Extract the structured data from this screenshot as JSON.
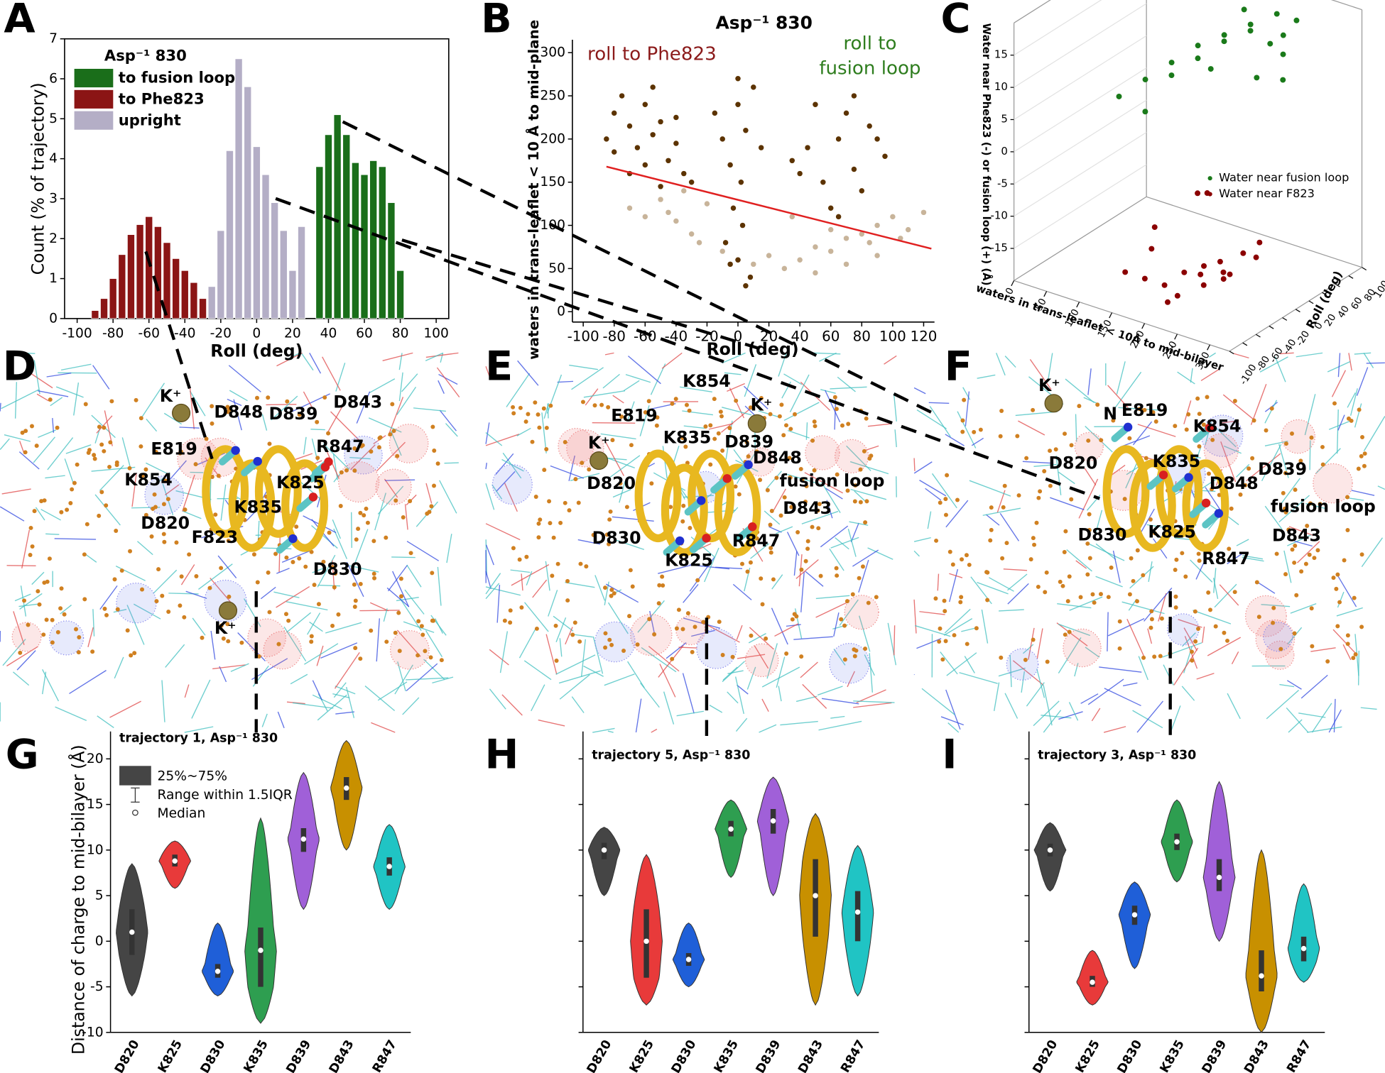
{
  "chart_data": [
    {
      "type": "bar",
      "panel_label": "A",
      "title": "Asp⁻¹ 830",
      "xlabel": "Roll (deg)",
      "ylabel": "Count (% of trajectory)",
      "xlim": [
        -107,
        107
      ],
      "xticks": [
        -100,
        -80,
        -60,
        -40,
        -20,
        0,
        20,
        40,
        60,
        80,
        100
      ],
      "ylim": [
        0,
        7
      ],
      "yticks": [
        0,
        1,
        2,
        3,
        4,
        5,
        6,
        7
      ],
      "series": [
        {
          "name": "to fusion loop",
          "color": "#1a6e1a",
          "x": [
            35,
            40,
            45,
            50,
            55,
            60,
            65,
            70,
            75,
            80
          ],
          "values": [
            3.8,
            4.6,
            5.1,
            4.6,
            3.9,
            3.6,
            3.95,
            3.8,
            2.9,
            1.2
          ]
        },
        {
          "name": "to Phe823",
          "color": "#8b1515",
          "x": [
            -90,
            -85,
            -80,
            -75,
            -70,
            -65,
            -60,
            -55,
            -50,
            -45,
            -40,
            -35,
            -30
          ],
          "values": [
            0.2,
            0.5,
            1.0,
            1.6,
            2.1,
            2.35,
            2.55,
            2.3,
            1.9,
            1.5,
            1.2,
            0.9,
            0.5
          ]
        },
        {
          "name": "upright",
          "color": "#b4aec6",
          "x": [
            -25,
            -20,
            -15,
            -10,
            -5,
            0,
            5,
            10,
            15,
            20,
            25
          ],
          "values": [
            0.8,
            2.2,
            4.2,
            6.5,
            5.8,
            4.3,
            3.6,
            2.9,
            2.2,
            1.2,
            2.3
          ]
        }
      ]
    },
    {
      "type": "scatter",
      "panel_label": "B",
      "title": "Asp⁻¹ 830",
      "xlabel": "Roll (deg)",
      "ylabel": "waters in trans-leaflet < 10 Å to mid-plane",
      "xlim": [
        -107,
        127
      ],
      "xticks": [
        -100,
        -80,
        -60,
        -40,
        -20,
        0,
        20,
        40,
        60,
        80,
        100,
        120
      ],
      "ylim": [
        -12,
        315
      ],
      "yticks": [
        0,
        50,
        100,
        150,
        200,
        250,
        300
      ],
      "annotations": [
        {
          "text": "roll to Phe823",
          "color": "#8b1a1a"
        },
        {
          "text": "roll to",
          "color": "#2e7d1e"
        },
        {
          "text": "fusion loop",
          "color": "#2e7d1e"
        }
      ],
      "trend_line": {
        "color": "#e02020",
        "x": [
          -85,
          125
        ],
        "y": [
          168,
          73
        ]
      },
      "series": [
        {
          "color": "#c8b49a",
          "x": [
            -70,
            -60,
            -50,
            -40,
            -30,
            -20,
            -25,
            -45,
            -10,
            0,
            10,
            20,
            30,
            40,
            50,
            60,
            70,
            80,
            90,
            100,
            110,
            120,
            50,
            70,
            90,
            35,
            60,
            85,
            105,
            -35
          ],
          "y": [
            120,
            110,
            130,
            105,
            90,
            125,
            80,
            115,
            70,
            60,
            55,
            65,
            50,
            60,
            75,
            70,
            85,
            90,
            100,
            110,
            95,
            115,
            45,
            55,
            65,
            110,
            95,
            80,
            85,
            140
          ]
        },
        {
          "color": "#5c3300",
          "x": [
            -85,
            -80,
            -75,
            -70,
            -65,
            -60,
            -55,
            -50,
            -45,
            -40,
            -35,
            -30,
            -60,
            -70,
            -50,
            -40,
            -80,
            -55,
            -15,
            -10,
            -5,
            0,
            5,
            10,
            15,
            -8,
            0,
            8,
            3,
            -3,
            5,
            -5,
            0,
            2,
            35,
            45,
            55,
            65,
            75,
            85,
            95,
            50,
            70,
            80,
            60,
            40,
            90,
            75,
            65
          ],
          "y": [
            200,
            230,
            250,
            215,
            190,
            240,
            205,
            220,
            175,
            195,
            160,
            150,
            170,
            160,
            145,
            225,
            185,
            260,
            230,
            200,
            170,
            240,
            210,
            260,
            190,
            80,
            60,
            40,
            100,
            120,
            30,
            55,
            270,
            150,
            175,
            190,
            150,
            200,
            165,
            215,
            180,
            240,
            230,
            140,
            120,
            160,
            200,
            250,
            110
          ]
        }
      ]
    },
    {
      "type": "scatter3d",
      "panel_label": "C",
      "xlabel": "waters in trans-leaflet < 10Å to mid-bilayer",
      "ylabel": "Roll (deg)",
      "zlabel": "Water near Phe823 (-) or fusion loop (+) (Å)",
      "xlim": [
        0,
        330
      ],
      "xticks": [
        0,
        50,
        100,
        150,
        200,
        250,
        300
      ],
      "ylim": [
        -100,
        100
      ],
      "yticks": [
        -100,
        -80,
        -60,
        -40,
        -20,
        0,
        20,
        40,
        60,
        80,
        100
      ],
      "zlim": [
        -20,
        20
      ],
      "zticks": [
        -15,
        -10,
        -5,
        0,
        5,
        10,
        15
      ],
      "legend": "right",
      "series": [
        {
          "name": "Water near fusion loop",
          "color": "#1a7a1a",
          "x": [
            100,
            120,
            140,
            160,
            180,
            200,
            220,
            240,
            260,
            280,
            150,
            170,
            190,
            210,
            230,
            250,
            130,
            200,
            240,
            180
          ],
          "y": [
            -40,
            -20,
            0,
            20,
            40,
            60,
            80,
            70,
            50,
            30,
            -10,
            10,
            30,
            50,
            60,
            20,
            -30,
            0,
            90,
            70
          ],
          "z": [
            8,
            10,
            12,
            14,
            15,
            16,
            17,
            15,
            14,
            12,
            11,
            13,
            15,
            16,
            14,
            12,
            6,
            13,
            16,
            17
          ]
        },
        {
          "name": "Water near F823",
          "color": "#8b0000",
          "x": [
            150,
            170,
            190,
            210,
            230,
            250,
            270,
            290,
            310,
            200,
            220,
            240,
            260,
            180,
            280,
            230,
            210,
            250,
            160,
            300
          ],
          "y": [
            -80,
            -70,
            -60,
            -50,
            -40,
            -30,
            -50,
            -60,
            -40,
            -20,
            -70,
            -55,
            -45,
            -65,
            -30,
            -35,
            -75,
            -60,
            -50,
            -25
          ],
          "z": [
            -15,
            -16,
            -17,
            -15,
            -14,
            -16,
            -13,
            -12,
            -10,
            -5,
            -17,
            -14,
            -12,
            -8,
            -11,
            -3,
            -18,
            -15,
            -13,
            -9
          ]
        }
      ]
    },
    {
      "type": "violin",
      "panel_label": "G",
      "title": "trajectory 1, Asp⁻¹ 830",
      "ylabel": "Distance of charge to mid-bilayer (Å)",
      "legend": [
        "25%~75%",
        "Range within 1.5IQR",
        "Median"
      ],
      "ylim": [
        -10,
        23
      ],
      "yticks": [
        -10,
        -5,
        0,
        5,
        10,
        15,
        20
      ],
      "show_tick_labels": true,
      "categories": [
        "D820",
        "K825",
        "D830",
        "K835",
        "D839",
        "D843",
        "R847"
      ],
      "violins": [
        {
          "color": "#454545",
          "min": -6,
          "q1": -1.5,
          "median": 1,
          "q3": 3.5,
          "max": 8.5
        },
        {
          "color": "#e83a3a",
          "min": 5.8,
          "q1": 8.2,
          "median": 8.8,
          "q3": 9.5,
          "max": 11
        },
        {
          "color": "#1f5fd8",
          "min": -6,
          "q1": -4,
          "median": -3.3,
          "q3": -2.5,
          "max": 2
        },
        {
          "color": "#2e9e50",
          "min": -9,
          "q1": -5,
          "median": -1,
          "q3": 1.5,
          "max": 13.5
        },
        {
          "color": "#a060d8",
          "min": 3.5,
          "q1": 9.8,
          "median": 11.2,
          "q3": 12.4,
          "max": 18.5
        },
        {
          "color": "#c89000",
          "min": 10,
          "q1": 15.5,
          "median": 16.8,
          "q3": 18,
          "max": 22
        },
        {
          "color": "#20c4c4",
          "min": 3.5,
          "q1": 7.2,
          "median": 8.2,
          "q3": 9.2,
          "max": 12.8
        }
      ]
    },
    {
      "type": "violin",
      "panel_label": "H",
      "title": "trajectory 5, Asp⁻¹ 830",
      "ylim": [
        -10,
        23
      ],
      "yticks": [
        -10,
        -5,
        0,
        5,
        10,
        15,
        20
      ],
      "show_tick_labels": false,
      "categories": [
        "D820",
        "K825",
        "D830",
        "K835",
        "D839",
        "D843",
        "R847"
      ],
      "violins": [
        {
          "color": "#454545",
          "min": 5,
          "q1": 9,
          "median": 10,
          "q3": 10.8,
          "max": 12.5
        },
        {
          "color": "#e83a3a",
          "min": -7,
          "q1": -4,
          "median": 0,
          "q3": 3.5,
          "max": 9.5
        },
        {
          "color": "#1f5fd8",
          "min": -5,
          "q1": -2.7,
          "median": -2,
          "q3": -1.3,
          "max": 2
        },
        {
          "color": "#2e9e50",
          "min": 7,
          "q1": 11.5,
          "median": 12.3,
          "q3": 13.2,
          "max": 15.5
        },
        {
          "color": "#a060d8",
          "min": 5,
          "q1": 11.8,
          "median": 13.2,
          "q3": 14.5,
          "max": 18
        },
        {
          "color": "#c89000",
          "min": -7,
          "q1": 0.5,
          "median": 5,
          "q3": 9,
          "max": 14
        },
        {
          "color": "#20c4c4",
          "min": -6,
          "q1": 0,
          "median": 3.2,
          "q3": 5.5,
          "max": 10.5
        }
      ]
    },
    {
      "type": "violin",
      "panel_label": "I",
      "title": "trajectory 3, Asp⁻¹ 830",
      "ylim": [
        -10,
        23
      ],
      "yticks": [
        -10,
        -5,
        0,
        5,
        10,
        15,
        20
      ],
      "show_tick_labels": false,
      "categories": [
        "D820",
        "K825",
        "D830",
        "K835",
        "D839",
        "D843",
        "R847"
      ],
      "violins": [
        {
          "color": "#454545",
          "min": 5.5,
          "q1": 9.3,
          "median": 10,
          "q3": 10.7,
          "max": 13
        },
        {
          "color": "#e83a3a",
          "min": -7,
          "q1": -5,
          "median": -4.5,
          "q3": -3.8,
          "max": -1
        },
        {
          "color": "#1f5fd8",
          "min": -3,
          "q1": 1.8,
          "median": 2.9,
          "q3": 3.9,
          "max": 6.5
        },
        {
          "color": "#2e9e50",
          "min": 6.5,
          "q1": 10,
          "median": 10.9,
          "q3": 11.8,
          "max": 15.5
        },
        {
          "color": "#a060d8",
          "min": 0,
          "q1": 5.5,
          "median": 7,
          "q3": 9,
          "max": 17.5
        },
        {
          "color": "#c89000",
          "min": -10,
          "q1": -5.5,
          "median": -3.8,
          "q3": -1,
          "max": 10
        },
        {
          "color": "#20c4c4",
          "min": -4.5,
          "q1": -2.2,
          "median": -0.8,
          "q3": 0.5,
          "max": 6.3
        }
      ]
    }
  ],
  "structures": [
    {
      "panel_label": "D",
      "labels": [
        "K⁺",
        "D848",
        "D839",
        "D843",
        "R847",
        "E819",
        "K854",
        "K825",
        "K835",
        "D820",
        "F823",
        "D830",
        "K⁺"
      ]
    },
    {
      "panel_label": "E",
      "labels": [
        "K854",
        "E819",
        "K⁺",
        "K835",
        "K⁺",
        "D839",
        "D848",
        "D820",
        "fusion loop",
        "D843",
        "D830",
        "R847",
        "K825"
      ]
    },
    {
      "panel_label": "F",
      "labels": [
        "K⁺",
        "N",
        "E819",
        "K854",
        "D820",
        "K835",
        "D839",
        "D848",
        "fusion loop",
        "D830",
        "K825",
        "D843",
        "R847"
      ]
    }
  ]
}
